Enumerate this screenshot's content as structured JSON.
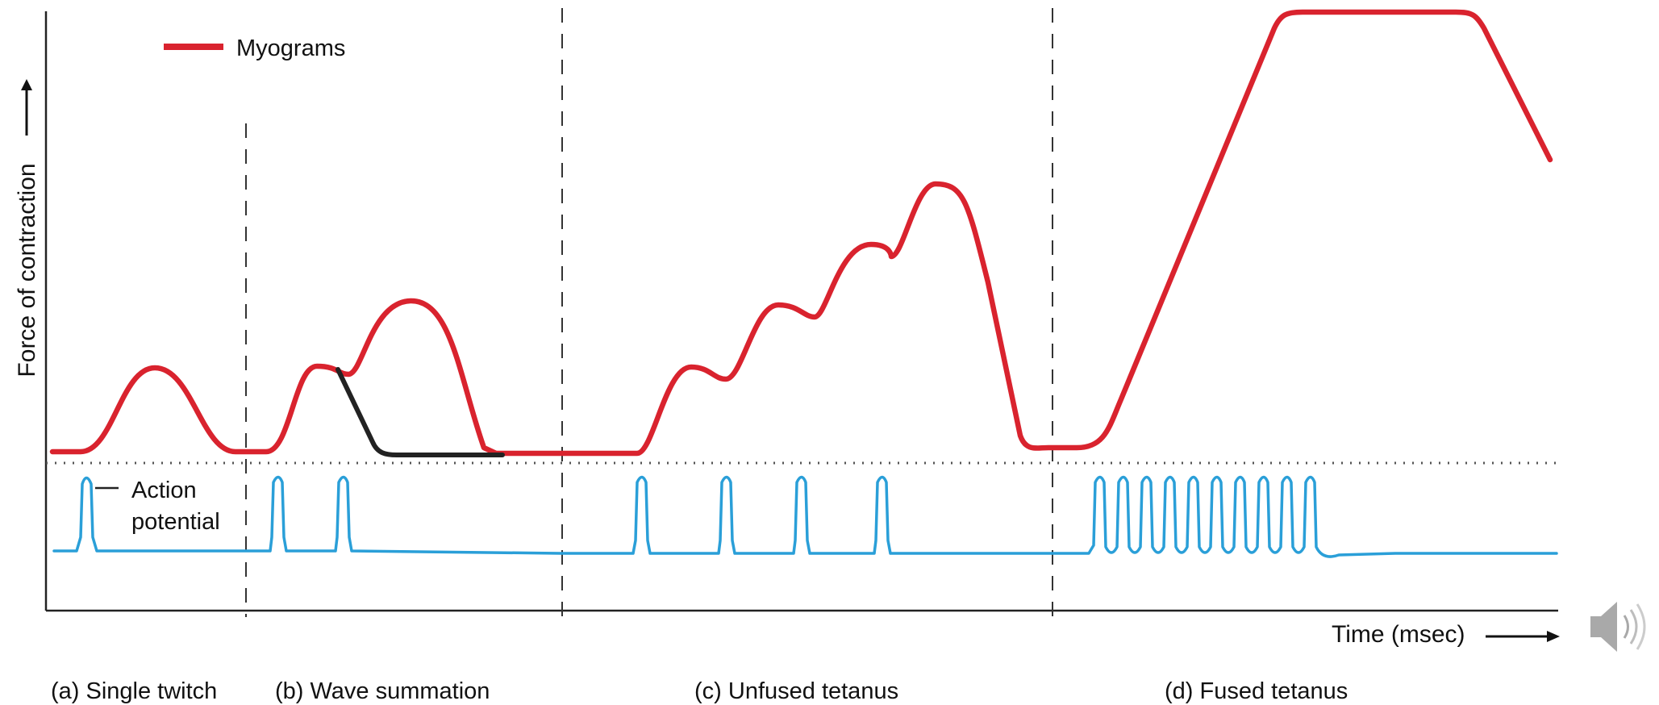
{
  "legend": {
    "label": "Myograms",
    "color": "#d9232e"
  },
  "axes": {
    "y_label": "Force of contraction",
    "x_label": "Time (msec)",
    "y_arrow_icon": "arrow-up-icon",
    "x_arrow_icon": "arrow-right-icon"
  },
  "action_potential": {
    "label_line1": "Action",
    "label_line2": "potential",
    "color": "#2a9fd8"
  },
  "panels": [
    {
      "label": "(a) Single twitch"
    },
    {
      "label": "(b) Wave summation"
    },
    {
      "label": "(c) Unfused tetanus"
    },
    {
      "label": "(d) Fused tetanus"
    }
  ],
  "colors": {
    "myogram": "#d9232e",
    "action_potential": "#2a9fd8",
    "relaxation_trace": "#222222",
    "axes": "#222222",
    "dividers": "#333333"
  },
  "icons": {
    "speaker": "speaker-icon"
  }
}
